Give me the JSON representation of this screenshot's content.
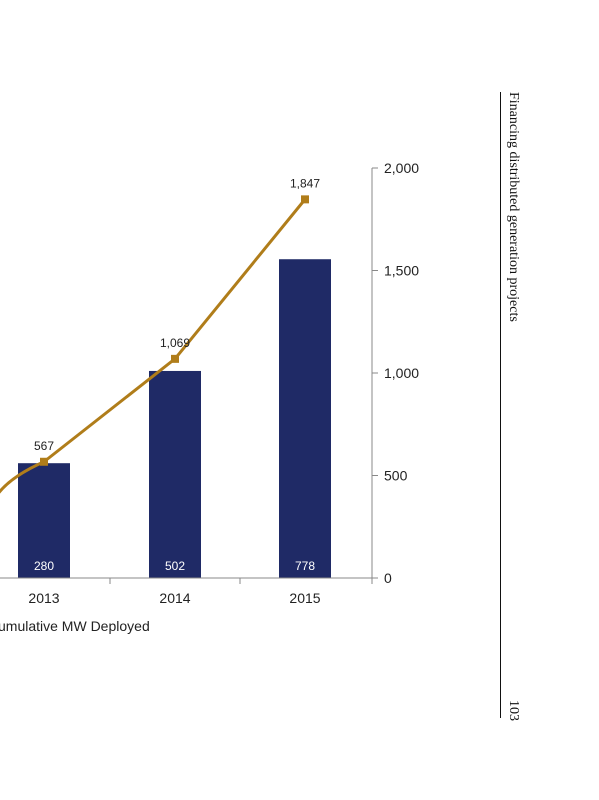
{
  "page": {
    "running_head": "Financing distributed generation projects",
    "page_number": "103"
  },
  "chart_data": {
    "type": "bar",
    "categories": [
      "2013",
      "2014",
      "2015"
    ],
    "series": [
      {
        "kind": "bar",
        "values": [
          560,
          1010,
          1555
        ],
        "inner_labels": [
          "280",
          "502",
          "778"
        ],
        "color": "#1f2a66"
      },
      {
        "kind": "line",
        "values": [
          567,
          1069,
          1847
        ],
        "labels": [
          "567",
          "1,069",
          "1,847"
        ],
        "color": "#b07d1a"
      }
    ],
    "y_axis": {
      "position": "right",
      "ylim": [
        0,
        2000
      ],
      "ticks": [
        0,
        500,
        1000,
        1500,
        2000
      ],
      "tick_labels": [
        "0",
        "500",
        "1,000",
        "1,500",
        "2,000"
      ]
    },
    "legend_text": "umulative MW Deployed",
    "grid": false
  }
}
